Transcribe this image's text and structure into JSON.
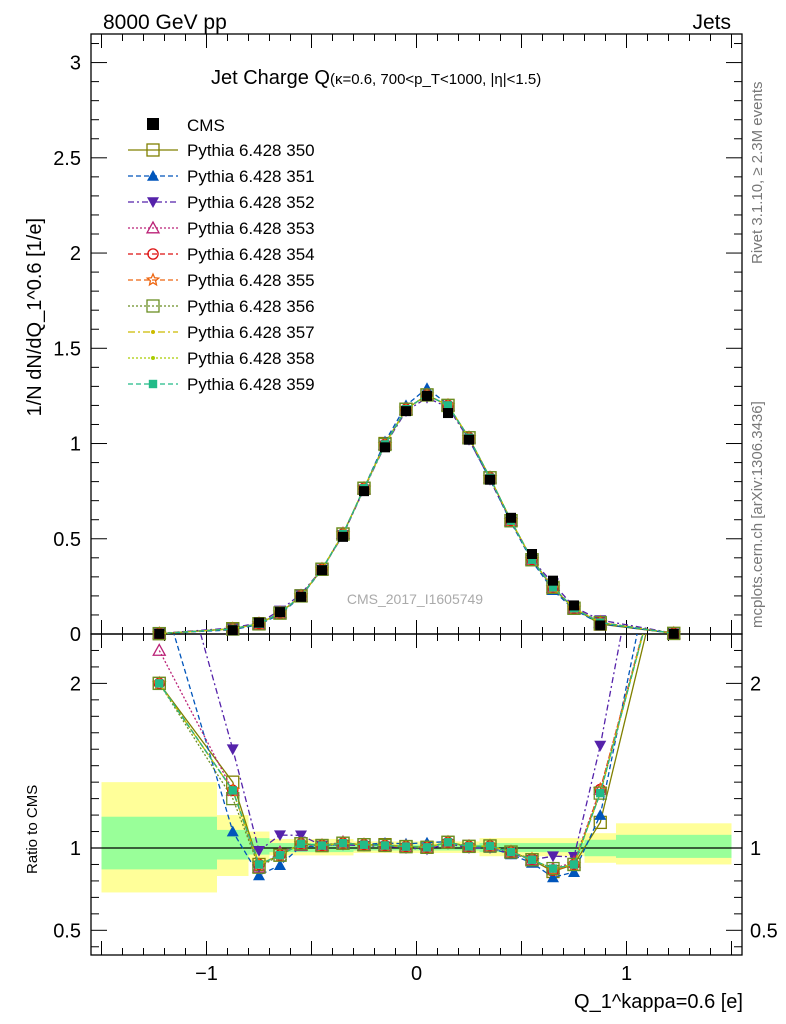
{
  "header": {
    "left": "8000 GeV pp",
    "right": "Jets"
  },
  "side_text": {
    "rivet": "Rivet 3.1.10, ≥ 2.3M events",
    "mcplots": "mcplots.cern.ch [arXiv:1306.3436]"
  },
  "watermark": "CMS_2017_I1605749",
  "chart_data": {
    "type": "line",
    "title": {
      "main": "Jet Charge Q",
      "detail": "(κ=0.6, 700<p_T<1000, |η|<1.5)"
    },
    "ylabel": "1/N dN/dQ_1^0.6 [1/e]",
    "xlabel": "Q_1^kappa=0.6 [e]",
    "ratio_ylabel": "Ratio to CMS",
    "xlim": [
      -1.55,
      1.55
    ],
    "ylim": [
      0,
      3.15
    ],
    "ratio_ylim": [
      0.35,
      2.3
    ],
    "x_ticks": [
      {
        "v": -1,
        "label": "−1"
      },
      {
        "v": 0,
        "label": "0"
      },
      {
        "v": 1,
        "label": "1"
      }
    ],
    "y_ticks": [
      {
        "v": 0,
        "label": "0"
      },
      {
        "v": 0.5,
        "label": "0.5"
      },
      {
        "v": 1,
        "label": "1"
      },
      {
        "v": 1.5,
        "label": "1.5"
      },
      {
        "v": 2,
        "label": "2"
      },
      {
        "v": 2.5,
        "label": "2.5"
      },
      {
        "v": 3,
        "label": "3"
      }
    ],
    "ratio_y_ticks": [
      {
        "v": 0.5,
        "label": "0.5"
      },
      {
        "v": 1,
        "label": "1"
      },
      {
        "v": 2,
        "label": "2"
      }
    ],
    "x": [
      -1.225,
      -0.875,
      -0.75,
      -0.65,
      -0.55,
      -0.45,
      -0.35,
      -0.25,
      -0.15,
      -0.05,
      0.05,
      0.15,
      0.25,
      0.35,
      0.45,
      0.55,
      0.65,
      0.75,
      0.875,
      1.225
    ],
    "data_series": {
      "name": "CMS",
      "values": [
        0.001,
        0.02,
        0.06,
        0.115,
        0.195,
        0.335,
        0.51,
        0.75,
        0.98,
        1.17,
        1.25,
        1.16,
        1.02,
        0.81,
        0.61,
        0.42,
        0.28,
        0.15,
        0.045,
        0.001
      ]
    },
    "band_bins": [
      {
        "lo": -1.5,
        "hi": -0.95,
        "g": [
          0.87,
          1.19
        ],
        "y": [
          0.73,
          1.4
        ]
      },
      {
        "lo": -0.95,
        "hi": -0.8,
        "g": [
          0.93,
          1.11
        ],
        "y": [
          0.83,
          1.2
        ]
      },
      {
        "lo": -0.8,
        "hi": -0.7,
        "g": [
          0.96,
          1.06
        ],
        "y": [
          0.92,
          1.1
        ]
      },
      {
        "lo": -0.7,
        "hi": -0.3,
        "g": [
          0.975,
          1.03
        ],
        "y": [
          0.955,
          1.055
        ]
      },
      {
        "lo": -0.3,
        "hi": 0.3,
        "g": [
          0.985,
          1.02
        ],
        "y": [
          0.97,
          1.04
        ]
      },
      {
        "lo": 0.3,
        "hi": 0.8,
        "g": [
          0.975,
          1.03
        ],
        "y": [
          0.95,
          1.06
        ]
      },
      {
        "lo": 0.8,
        "hi": 0.95,
        "g": [
          0.95,
          1.05
        ],
        "y": [
          0.91,
          1.09
        ]
      },
      {
        "lo": 0.95,
        "hi": 1.5,
        "g": [
          0.94,
          1.08
        ],
        "y": [
          0.9,
          1.15
        ]
      }
    ],
    "series": [
      {
        "name": "Pythia 6.428 350",
        "color": "#808000",
        "marker": "square-open",
        "dash": "",
        "values": [
          0.002,
          0.028,
          0.054,
          0.11,
          0.2,
          0.34,
          0.525,
          0.765,
          1.0,
          1.18,
          1.255,
          1.2,
          1.03,
          0.82,
          0.595,
          0.39,
          0.24,
          0.135,
          0.052,
          0.003
        ]
      },
      {
        "name": "Pythia 6.428 351",
        "color": "#0055bb",
        "marker": "triangle-up",
        "dash": "5,3",
        "values": [
          0.0026,
          0.022,
          0.05,
          0.103,
          0.197,
          0.338,
          0.523,
          0.766,
          1.01,
          1.2,
          1.29,
          1.205,
          1.02,
          0.81,
          0.586,
          0.382,
          0.23,
          0.128,
          0.054,
          0.0034
        ]
      },
      {
        "name": "Pythia 6.428 352",
        "color": "#5522aa",
        "marker": "triangle-down",
        "dash": "6,3,2,3",
        "values": [
          0.0032,
          0.032,
          0.059,
          0.124,
          0.21,
          0.34,
          0.52,
          0.76,
          0.99,
          1.17,
          1.24,
          1.19,
          1.02,
          0.81,
          0.59,
          0.39,
          0.266,
          0.142,
          0.073,
          0.004
        ]
      },
      {
        "name": "Pythia 6.428 353",
        "color": "#bb2277",
        "marker": "triangle-open",
        "dash": "2,2",
        "values": [
          0.0022,
          0.027,
          0.053,
          0.112,
          0.198,
          0.34,
          0.528,
          0.762,
          0.995,
          1.18,
          1.255,
          1.2,
          1.03,
          0.82,
          0.595,
          0.39,
          0.245,
          0.137,
          0.061,
          0.003
        ]
      },
      {
        "name": "Pythia 6.428 354",
        "color": "#dd1111",
        "marker": "circle-open",
        "dash": "5,3",
        "values": [
          0.002,
          0.027,
          0.054,
          0.11,
          0.2,
          0.34,
          0.525,
          0.765,
          0.995,
          1.18,
          1.255,
          1.2,
          1.03,
          0.82,
          0.595,
          0.392,
          0.242,
          0.135,
          0.061,
          0.003
        ]
      },
      {
        "name": "Pythia 6.428 355",
        "color": "#ee6611",
        "marker": "star-open",
        "dash": "5,3",
        "values": [
          0.002,
          0.027,
          0.054,
          0.11,
          0.2,
          0.34,
          0.525,
          0.765,
          0.995,
          1.18,
          1.255,
          1.2,
          1.03,
          0.82,
          0.595,
          0.392,
          0.242,
          0.135,
          0.061,
          0.003
        ]
      },
      {
        "name": "Pythia 6.428 356",
        "color": "#6b8e23",
        "marker": "square-open",
        "dash": "2,2",
        "values": [
          0.002,
          0.026,
          0.053,
          0.11,
          0.2,
          0.34,
          0.525,
          0.765,
          0.995,
          1.18,
          1.255,
          1.2,
          1.03,
          0.82,
          0.595,
          0.39,
          0.245,
          0.135,
          0.06,
          0.003
        ]
      },
      {
        "name": "Pythia 6.428 357",
        "color": "#ccbb00",
        "marker": "dot",
        "dash": "7,3,2,3",
        "values": [
          0.002,
          0.027,
          0.054,
          0.11,
          0.2,
          0.34,
          0.525,
          0.765,
          0.995,
          1.18,
          1.255,
          1.2,
          1.03,
          0.82,
          0.595,
          0.39,
          0.245,
          0.135,
          0.06,
          0.003
        ]
      },
      {
        "name": "Pythia 6.428 358",
        "color": "#aacc00",
        "marker": "dot",
        "dash": "2,2",
        "values": [
          0.002,
          0.027,
          0.054,
          0.11,
          0.2,
          0.34,
          0.525,
          0.765,
          0.995,
          1.18,
          1.255,
          1.2,
          1.03,
          0.82,
          0.595,
          0.39,
          0.245,
          0.135,
          0.06,
          0.003
        ]
      },
      {
        "name": "Pythia 6.428 359",
        "color": "#22bb88",
        "marker": "square-filled",
        "dash": "5,3",
        "values": [
          0.002,
          0.027,
          0.054,
          0.11,
          0.2,
          0.34,
          0.525,
          0.765,
          0.995,
          1.18,
          1.255,
          1.2,
          1.03,
          0.82,
          0.595,
          0.39,
          0.245,
          0.135,
          0.06,
          0.003
        ]
      }
    ]
  }
}
